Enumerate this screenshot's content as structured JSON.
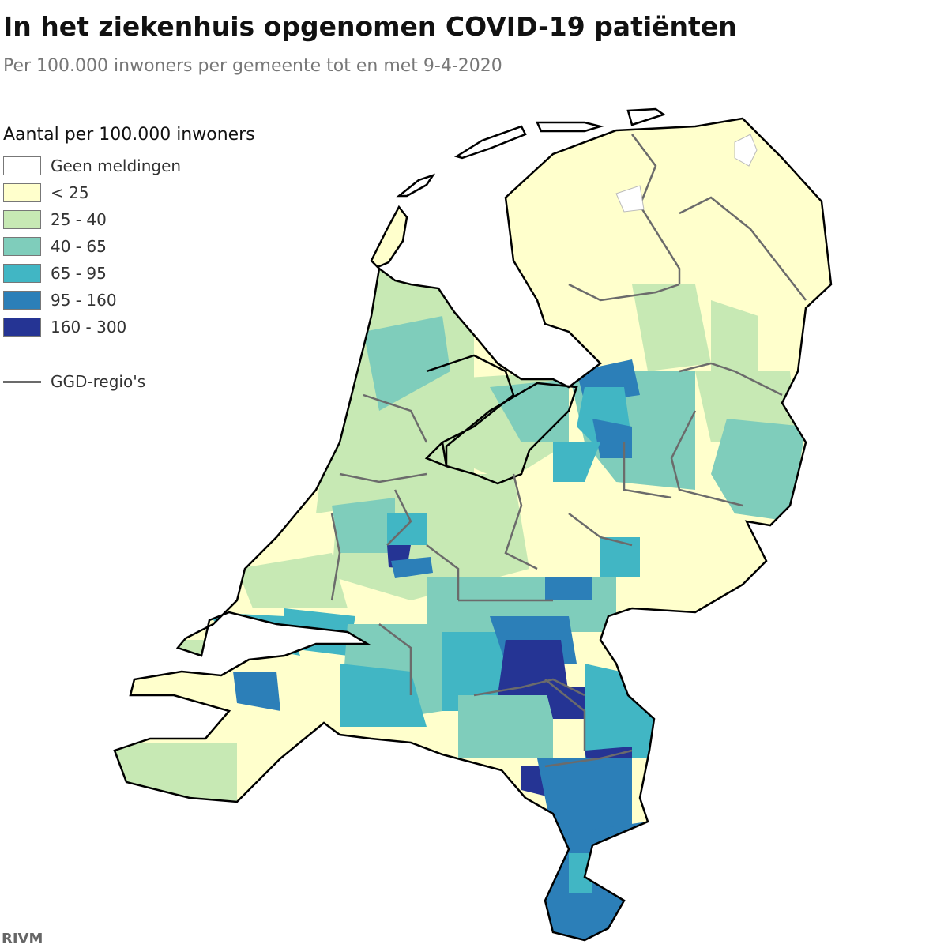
{
  "title": "In het ziekenhuis opgenomen COVID-19 patiënten",
  "subtitle": "Per 100.000 inwoners per gemeente tot en met 9-4-2020",
  "legend": {
    "title": "Aantal per 100.000 inwoners",
    "items": [
      {
        "label": "Geen meldingen",
        "color": "#ffffff"
      },
      {
        "label": "< 25",
        "color": "#ffffcc"
      },
      {
        "label": "25 - 40",
        "color": "#c7e9b4"
      },
      {
        "label": "40 - 65",
        "color": "#7fcdbb"
      },
      {
        "label": "65 - 95",
        "color": "#41b6c4"
      },
      {
        "label": "95 - 160",
        "color": "#2c7fb8"
      },
      {
        "label": "160 - 300",
        "color": "#253494"
      }
    ],
    "ggd_label": "GGD-regio's",
    "ggd_color": "#6b6b6b"
  },
  "source": "RIVM"
}
